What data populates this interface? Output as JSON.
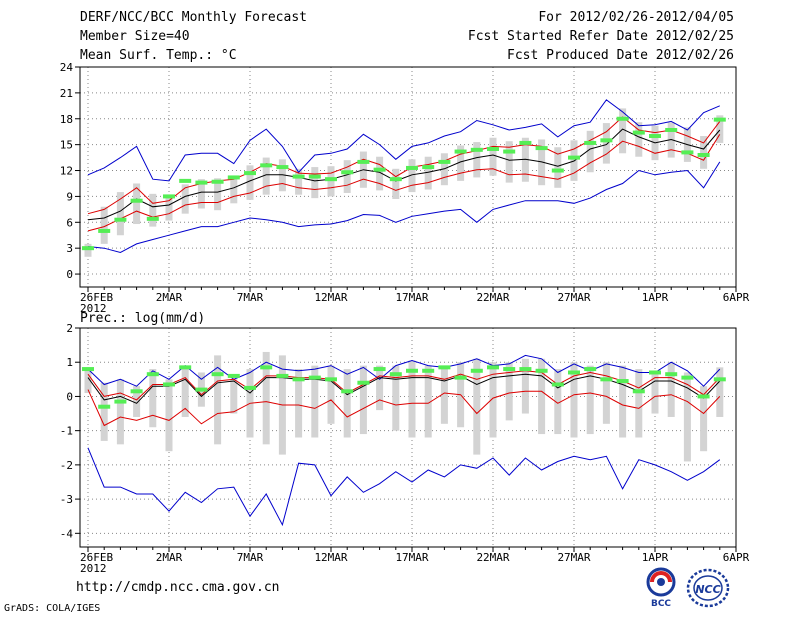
{
  "header": {
    "title": "DERF/NCC/BCC Monthly Forecast",
    "member": "Member Size=40",
    "variable": "Mean Surf. Temp.: °C",
    "period": "For 2012/02/26-2012/04/05",
    "started": "Fcst Started Refer Date 2012/02/25",
    "produced": "Fcst Produced Date 2012/02/26"
  },
  "footer": {
    "url": "http://cmdp.ncc.cma.gov.cn",
    "credit": "GrADS: COLA/IGES",
    "logo_left_text": "BCC",
    "logo_right_text": "NCC"
  },
  "colors": {
    "max_line": "#0000cc",
    "min_line": "#0000cc",
    "upper_line": "#dd0000",
    "lower_line": "#dd0000",
    "mean_line": "#000000",
    "box": "#d3d3d3",
    "marker": "#55ee55",
    "grid": "#888888"
  },
  "chart_data": [
    {
      "type": "line",
      "title": "",
      "ylabel": "",
      "ylim": [
        -1.5,
        24
      ],
      "y_ticks": [
        "0",
        "3",
        "6",
        "9",
        "12",
        "15",
        "18",
        "21",
        "24"
      ],
      "y_tick_values": [
        0,
        3,
        6,
        9,
        12,
        15,
        18,
        21,
        24
      ],
      "x_tick_labels": [
        "26FEB",
        "2MAR",
        "7MAR",
        "12MAR",
        "17MAR",
        "22MAR",
        "27MAR",
        "1APR",
        "6APR"
      ],
      "x_tick_days": [
        0,
        5,
        10,
        15,
        20,
        25,
        30,
        35,
        40
      ],
      "year_label": "2012",
      "x": [
        0,
        1,
        2,
        3,
        4,
        5,
        6,
        7,
        8,
        9,
        10,
        11,
        12,
        13,
        14,
        15,
        16,
        17,
        18,
        19,
        20,
        21,
        22,
        23,
        24,
        25,
        26,
        27,
        28,
        29,
        30,
        31,
        32,
        33,
        34,
        35,
        36,
        37,
        38,
        39
      ],
      "series": [
        {
          "name": "max",
          "values": [
            11.5,
            12.3,
            13.5,
            14.8,
            11.0,
            10.8,
            13.8,
            14.0,
            14.0,
            12.8,
            15.5,
            16.8,
            14.8,
            11.8,
            13.8,
            14.0,
            14.5,
            16.2,
            15.0,
            13.3,
            14.8,
            15.2,
            16.0,
            16.5,
            17.8,
            17.3,
            16.7,
            17.0,
            17.4,
            15.9,
            17.2,
            17.6,
            20.2,
            18.8,
            17.2,
            17.3,
            17.7,
            16.7,
            18.7,
            19.5
          ]
        },
        {
          "name": "upper",
          "values": [
            7.0,
            7.5,
            8.7,
            10.0,
            8.2,
            8.5,
            10.0,
            10.5,
            10.8,
            11.0,
            11.8,
            12.8,
            12.5,
            11.7,
            11.6,
            11.7,
            12.4,
            13.3,
            12.7,
            11.3,
            12.4,
            12.7,
            13.1,
            13.9,
            14.3,
            14.8,
            14.7,
            15.0,
            14.8,
            13.9,
            14.5,
            15.5,
            16.5,
            18.2,
            16.7,
            16.4,
            16.7,
            16.0,
            15.2,
            17.7
          ]
        },
        {
          "name": "mean",
          "values": [
            6.3,
            6.5,
            7.3,
            8.7,
            7.8,
            8.0,
            9.0,
            9.5,
            9.5,
            10.0,
            10.8,
            11.5,
            11.5,
            11.2,
            10.8,
            11.0,
            11.5,
            12.1,
            11.8,
            10.8,
            11.5,
            11.8,
            12.2,
            13.0,
            13.5,
            13.8,
            13.2,
            13.3,
            13.0,
            12.5,
            13.1,
            14.5,
            15.0,
            16.8,
            15.9,
            15.2,
            15.6,
            15.0,
            14.5,
            16.7
          ]
        },
        {
          "name": "lower",
          "values": [
            5.0,
            5.5,
            6.4,
            7.3,
            6.6,
            7.0,
            8.0,
            8.3,
            8.3,
            9.0,
            9.4,
            10.2,
            10.5,
            10.0,
            9.8,
            10.0,
            10.3,
            11.0,
            10.5,
            9.7,
            10.3,
            10.6,
            11.2,
            11.7,
            12.1,
            12.2,
            11.5,
            11.6,
            11.3,
            11.0,
            11.7,
            12.9,
            13.9,
            15.4,
            14.8,
            14.0,
            14.4,
            14.0,
            13.2,
            16.2
          ]
        },
        {
          "name": "min",
          "values": [
            3.2,
            3.0,
            2.5,
            3.5,
            4.0,
            4.5,
            5.0,
            5.5,
            5.5,
            6.0,
            6.5,
            6.3,
            6.0,
            5.5,
            5.7,
            5.8,
            6.2,
            6.9,
            6.8,
            6.0,
            6.7,
            7.0,
            7.3,
            7.5,
            6.0,
            7.5,
            8.0,
            8.5,
            8.5,
            8.5,
            8.2,
            8.8,
            9.8,
            10.5,
            12.0,
            11.5,
            11.8,
            12.0,
            10.0,
            13.0
          ]
        }
      ],
      "box_low": [
        2.0,
        3.5,
        4.5,
        5.8,
        5.5,
        6.2,
        7.0,
        7.6,
        7.4,
        8.2,
        8.6,
        9.2,
        9.6,
        9.2,
        8.8,
        9.0,
        9.4,
        10.0,
        9.7,
        8.7,
        9.5,
        9.8,
        10.3,
        10.8,
        11.2,
        11.4,
        10.6,
        10.7,
        10.3,
        10.0,
        10.8,
        11.8,
        12.8,
        14.0,
        13.6,
        13.2,
        13.5,
        13.0,
        12.2,
        15.2
      ],
      "box_high": [
        3.5,
        7.8,
        9.5,
        10.5,
        9.3,
        9.0,
        10.4,
        11.0,
        11.1,
        11.4,
        12.6,
        13.5,
        13.3,
        12.2,
        12.4,
        12.5,
        13.2,
        14.2,
        13.6,
        12.2,
        13.3,
        13.6,
        14.0,
        14.9,
        15.3,
        15.8,
        15.4,
        15.8,
        15.6,
        14.7,
        15.5,
        16.6,
        17.5,
        19.2,
        17.6,
        17.2,
        17.6,
        17.0,
        16.0,
        18.4
      ],
      "markers": [
        3.0,
        5.0,
        6.3,
        8.5,
        6.4,
        9.0,
        10.8,
        10.6,
        10.7,
        11.2,
        11.7,
        12.6,
        12.4,
        11.3,
        11.3,
        11.0,
        11.8,
        13.0,
        12.1,
        11.0,
        12.3,
        12.4,
        13.0,
        14.2,
        14.4,
        14.5,
        14.2,
        15.2,
        14.6,
        12.0,
        13.5,
        15.2,
        15.5,
        18.0,
        16.4,
        16.0,
        16.7,
        14.1,
        13.8,
        17.9
      ]
    },
    {
      "type": "line",
      "title": "Prec.: log(mm/d)",
      "ylabel": "",
      "ylim": [
        -4.4,
        2
      ],
      "y_ticks": [
        "-4",
        "-3",
        "-2",
        "-1",
        "0",
        "1",
        "2"
      ],
      "y_tick_values": [
        -4,
        -3,
        -2,
        -1,
        0,
        1,
        2
      ],
      "x_tick_labels": [
        "26FEB",
        "2MAR",
        "7MAR",
        "12MAR",
        "17MAR",
        "22MAR",
        "27MAR",
        "1APR",
        "6APR"
      ],
      "x_tick_days": [
        0,
        5,
        10,
        15,
        20,
        25,
        30,
        35,
        40
      ],
      "year_label": "2012",
      "x": [
        0,
        1,
        2,
        3,
        4,
        5,
        6,
        7,
        8,
        9,
        10,
        11,
        12,
        13,
        14,
        15,
        16,
        17,
        18,
        19,
        20,
        21,
        22,
        23,
        24,
        25,
        26,
        27,
        28,
        29,
        30,
        31,
        32,
        33,
        34,
        35,
        36,
        37,
        38,
        39
      ],
      "series": [
        {
          "name": "max",
          "values": [
            0.8,
            0.35,
            0.5,
            0.3,
            0.75,
            0.5,
            0.9,
            0.5,
            0.85,
            0.5,
            0.7,
            1.0,
            0.8,
            0.75,
            0.8,
            0.9,
            0.65,
            0.85,
            0.5,
            0.9,
            1.05,
            0.9,
            0.85,
            0.95,
            1.1,
            0.9,
            0.95,
            1.2,
            1.1,
            0.7,
            0.95,
            0.75,
            0.95,
            0.85,
            0.7,
            0.7,
            1.0,
            0.75,
            0.3,
            0.8
          ]
        },
        {
          "name": "upper",
          "values": [
            0.65,
            0.0,
            0.1,
            -0.1,
            0.35,
            0.35,
            0.55,
            0.05,
            0.45,
            0.5,
            0.2,
            0.6,
            0.6,
            0.55,
            0.55,
            0.5,
            0.1,
            0.35,
            0.6,
            0.55,
            0.6,
            0.6,
            0.5,
            0.65,
            0.5,
            0.65,
            0.7,
            0.75,
            0.7,
            0.35,
            0.6,
            0.7,
            0.6,
            0.45,
            0.25,
            0.55,
            0.55,
            0.35,
            0.05,
            0.55
          ]
        },
        {
          "name": "mean",
          "values": [
            0.55,
            -0.1,
            0.0,
            -0.2,
            0.3,
            0.3,
            0.5,
            0.0,
            0.4,
            0.45,
            0.1,
            0.55,
            0.55,
            0.5,
            0.5,
            0.45,
            0.05,
            0.3,
            0.55,
            0.5,
            0.55,
            0.55,
            0.45,
            0.6,
            0.35,
            0.55,
            0.6,
            0.65,
            0.6,
            0.25,
            0.5,
            0.6,
            0.5,
            0.35,
            0.15,
            0.45,
            0.45,
            0.25,
            -0.05,
            0.45
          ]
        },
        {
          "name": "lower",
          "values": [
            0.2,
            -0.85,
            -0.6,
            -0.7,
            -0.55,
            -0.7,
            -0.35,
            -0.8,
            -0.5,
            -0.45,
            -0.2,
            -0.15,
            -0.25,
            -0.25,
            -0.35,
            -0.1,
            -0.6,
            -0.35,
            -0.1,
            -0.25,
            -0.2,
            -0.2,
            0.1,
            0.05,
            -0.5,
            -0.05,
            0.1,
            0.15,
            0.15,
            -0.2,
            0.05,
            0.1,
            0.0,
            -0.25,
            -0.35,
            0.0,
            0.05,
            -0.15,
            -0.5,
            0.0
          ]
        },
        {
          "name": "min",
          "values": [
            -1.5,
            -2.65,
            -2.65,
            -2.85,
            -2.85,
            -3.35,
            -2.8,
            -3.1,
            -2.7,
            -2.65,
            -3.5,
            -2.85,
            -3.75,
            -1.95,
            -2.0,
            -2.9,
            -2.35,
            -2.8,
            -2.55,
            -2.2,
            -2.5,
            -2.15,
            -2.35,
            -2.0,
            -2.1,
            -1.8,
            -2.3,
            -1.8,
            -2.15,
            -1.9,
            -1.75,
            -1.85,
            -1.75,
            -2.7,
            -1.85,
            -2.0,
            -2.2,
            -2.45,
            -2.2,
            -1.85
          ]
        }
      ],
      "box_low": [
        0.1,
        -1.3,
        -1.4,
        -0.6,
        -0.9,
        -1.6,
        -0.6,
        -0.3,
        -1.4,
        -0.5,
        -1.2,
        -1.4,
        -1.7,
        -1.2,
        -1.2,
        -0.8,
        -1.2,
        -1.1,
        -0.4,
        -1.0,
        -1.2,
        -1.2,
        -0.8,
        -0.9,
        -1.7,
        -1.2,
        -0.7,
        -0.5,
        -1.1,
        -1.1,
        -1.2,
        -1.1,
        -0.8,
        -1.2,
        -1.2,
        -0.5,
        -0.6,
        -1.9,
        -1.6,
        -0.6
      ],
      "box_high": [
        0.8,
        0.4,
        0.5,
        0.3,
        0.8,
        0.5,
        0.9,
        0.7,
        1.2,
        0.5,
        0.8,
        1.3,
        1.2,
        0.8,
        0.9,
        0.9,
        0.8,
        0.9,
        0.9,
        0.9,
        1.05,
        0.9,
        0.9,
        1.0,
        1.1,
        1.0,
        1.0,
        1.1,
        1.1,
        0.8,
        1.0,
        0.9,
        1.0,
        0.9,
        0.8,
        0.7,
        1.0,
        0.7,
        0.3,
        0.85
      ],
      "markers": [
        0.8,
        -0.3,
        -0.15,
        0.15,
        0.65,
        0.35,
        0.85,
        0.2,
        0.65,
        0.6,
        0.25,
        0.85,
        0.6,
        0.5,
        0.55,
        0.5,
        0.15,
        0.4,
        0.8,
        0.65,
        0.75,
        0.75,
        0.85,
        0.55,
        0.75,
        0.85,
        0.8,
        0.8,
        0.75,
        0.35,
        0.7,
        0.8,
        0.5,
        0.45,
        0.15,
        0.7,
        0.65,
        0.55,
        0.0,
        0.5
      ]
    }
  ]
}
